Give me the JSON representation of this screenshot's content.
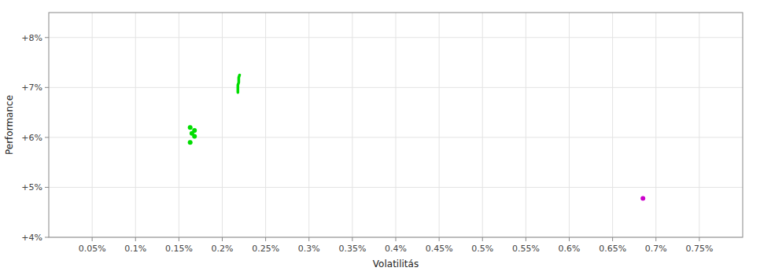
{
  "chart_data": {
    "type": "scatter",
    "xlabel": "Volatilitás",
    "ylabel": "Performance",
    "xlim": [
      0.0,
      0.008
    ],
    "ylim": [
      0.04,
      0.085
    ],
    "xticks": [
      {
        "value": 0.0005,
        "label": "0.05%"
      },
      {
        "value": 0.001,
        "label": "0.1%"
      },
      {
        "value": 0.0015,
        "label": "0.15%"
      },
      {
        "value": 0.002,
        "label": "0.2%"
      },
      {
        "value": 0.0025,
        "label": "0.25%"
      },
      {
        "value": 0.003,
        "label": "0.3%"
      },
      {
        "value": 0.0035,
        "label": "0.35%"
      },
      {
        "value": 0.004,
        "label": "0.4%"
      },
      {
        "value": 0.0045,
        "label": "0.45%"
      },
      {
        "value": 0.005,
        "label": "0.5%"
      },
      {
        "value": 0.0055,
        "label": "0.55%"
      },
      {
        "value": 0.006,
        "label": "0.6%"
      },
      {
        "value": 0.0065,
        "label": "0.65%"
      },
      {
        "value": 0.007,
        "label": "0.7%"
      },
      {
        "value": 0.0075,
        "label": "0.75%"
      }
    ],
    "yticks": [
      {
        "value": 0.04,
        "label": "+4%"
      },
      {
        "value": 0.05,
        "label": "+5%"
      },
      {
        "value": 0.06,
        "label": "+6%"
      },
      {
        "value": 0.07,
        "label": "+7%"
      },
      {
        "value": 0.08,
        "label": "+8%"
      }
    ],
    "grid": true,
    "series": [
      {
        "type": "line",
        "color": "#00dd00",
        "x": [
          0.00218,
          0.00218,
          0.00218,
          0.00218,
          0.00219,
          0.00219,
          0.00219,
          0.0022
        ],
        "values": [
          0.069,
          0.0695,
          0.07,
          0.0705,
          0.071,
          0.0715,
          0.072,
          0.0725
        ]
      },
      {
        "type": "scatter",
        "color": "#00dd00",
        "x": [
          0.00163,
          0.00168,
          0.00165,
          0.00168,
          0.00163
        ],
        "values": [
          0.062,
          0.0614,
          0.0608,
          0.0602,
          0.059
        ]
      },
      {
        "type": "scatter",
        "color": "#cc00cc",
        "x": [
          0.00685
        ],
        "values": [
          0.0478
        ]
      }
    ]
  }
}
